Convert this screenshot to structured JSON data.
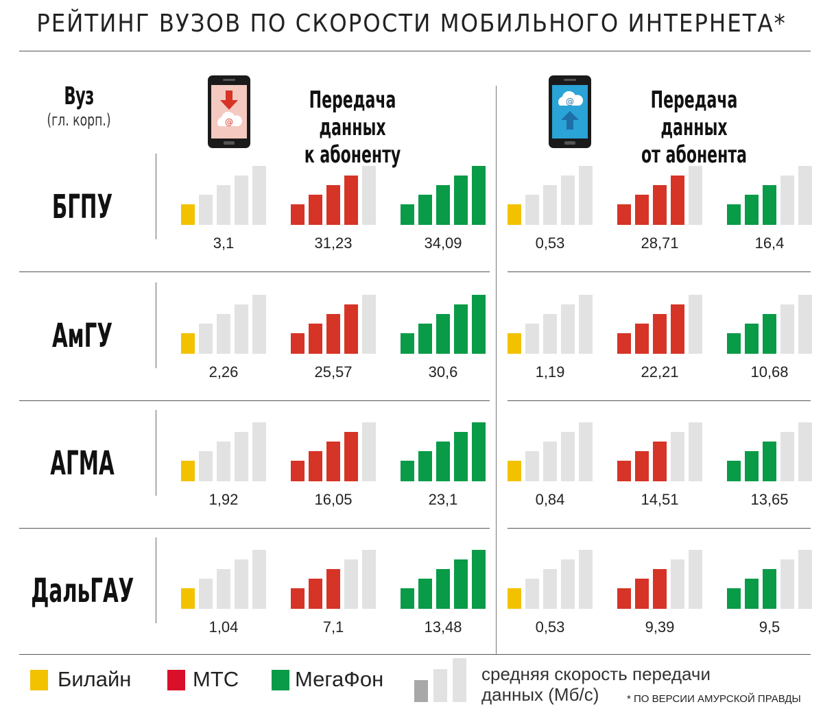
{
  "title": "РЕЙТИНГ ВУЗОВ ПО СКОРОСТИ МОБИЛЬНОГО ИНТЕРНЕТА*",
  "header": {
    "uni_col": "Вуз",
    "uni_sub": "(гл. корп.)",
    "download": [
      "Передача данных",
      "к абоненту"
    ],
    "upload": [
      "Передача данных",
      "от абонента"
    ]
  },
  "colors": {
    "beeline": "#f2c200",
    "mts": "#d63426",
    "megafon": "#0a9b48",
    "inactive": "#e2e2e2",
    "avg_dark": "#a8a8a8"
  },
  "chart_data": {
    "type": "bar",
    "title": "РЕЙТИНГ ВУЗОВ ПО СКОРОСТИ МОБИЛЬНОГО ИНТЕРНЕТА*",
    "unit": "Мб/с",
    "categories": [
      "БГПУ",
      "АмГУ",
      "АГМА",
      "ДальГАУ"
    ],
    "groups": [
      {
        "name": "Передача данных к абоненту",
        "series": [
          {
            "name": "Билайн",
            "values": [
              "3,1",
              "2,26",
              "1,92",
              "1,04"
            ],
            "bars": [
              1,
              1,
              1,
              1
            ]
          },
          {
            "name": "МТС",
            "values": [
              "31,23",
              "25,57",
              "16,05",
              "7,1"
            ],
            "bars": [
              4,
              4,
              4,
              3
            ]
          },
          {
            "name": "МегаФон",
            "values": [
              "34,09",
              "30,6",
              "23,1",
              "13,48"
            ],
            "bars": [
              5,
              5,
              5,
              5
            ]
          }
        ]
      },
      {
        "name": "Передача данных от абонента",
        "series": [
          {
            "name": "Билайн",
            "values": [
              "0,53",
              "1,19",
              "0,84",
              "0,53"
            ],
            "bars": [
              1,
              1,
              1,
              1
            ]
          },
          {
            "name": "МТС",
            "values": [
              "28,71",
              "22,21",
              "14,51",
              "9,39"
            ],
            "bars": [
              4,
              4,
              3,
              3
            ]
          },
          {
            "name": "МегаФон",
            "values": [
              "16,4",
              "10,68",
              "13,65",
              "9,5"
            ],
            "bars": [
              3,
              3,
              3,
              3
            ]
          }
        ]
      }
    ]
  },
  "legend": {
    "beeline": "Билайн",
    "mts": "МТС",
    "megafon": "МегаФон",
    "avg_line1": "средняя скорость передачи",
    "avg_line2": "данных (Мб/с)",
    "note": "* ПО ВЕРСИИ АМУРСКОЙ ПРАВДЫ"
  }
}
